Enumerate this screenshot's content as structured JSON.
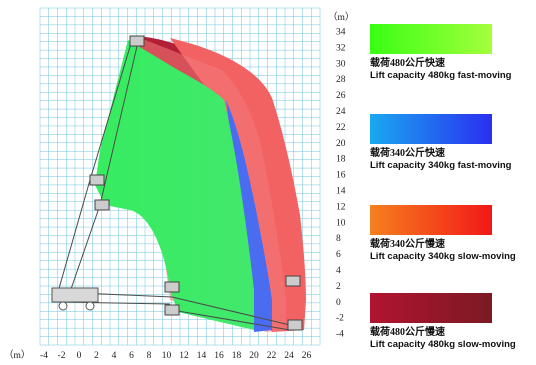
{
  "axes": {
    "x_unit": "（m）",
    "y_unit": "（m）",
    "x_ticks": [
      "-4",
      "-2",
      "0",
      "2",
      "4",
      "6",
      "8",
      "10",
      "12",
      "14",
      "16",
      "18",
      "20",
      "22",
      "24",
      "26"
    ],
    "y_ticks": [
      "34",
      "32",
      "30",
      "28",
      "26",
      "24",
      "22",
      "20",
      "18",
      "16",
      "14",
      "12",
      "10",
      "8",
      "6",
      "4",
      "2",
      "0",
      "-2",
      "-4"
    ]
  },
  "legend": [
    {
      "cn": "载荷480公斤快速",
      "en": "Lift capacity 480kg fast-moving",
      "color_from": "#39ff14",
      "color_to": "#a4ff3c"
    },
    {
      "cn": "载荷340公斤快速",
      "en": "Lift capacity 340kg fast-moving",
      "color_from": "#1aa8f0",
      "color_to": "#2a2ff0"
    },
    {
      "cn": "载荷340公斤慢速",
      "en": "Lift capacity 340kg slow-moving",
      "color_from": "#f5801e",
      "color_to": "#f21818"
    },
    {
      "cn": "载荷480公斤慢速",
      "en": "Lift capacity 480kg slow-moving",
      "color_from": "#b21430",
      "color_to": "#7a1a22"
    }
  ],
  "colors": {
    "grid": "#6ec4de",
    "envelope_red": "#f26262",
    "envelope_dark_red": "#b31f35",
    "envelope_blue": "#4a6cf0",
    "envelope_green": "#3ee86a",
    "boom": "#4a4a4a"
  }
}
